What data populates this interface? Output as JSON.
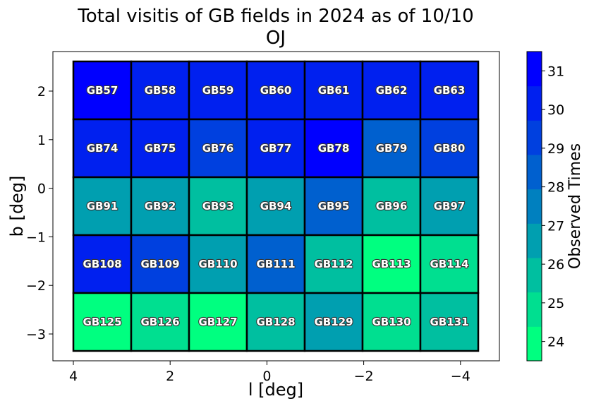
{
  "chart_data": {
    "type": "heatmap",
    "title_line1": "Total visitis of GB fields in 2024 as of 10/10",
    "title_line2": "OJ",
    "xlabel": "l [deg]",
    "ylabel": "b [deg]",
    "colorbar_label": "Observed Times",
    "x_ticks": [
      "4",
      "2",
      "0",
      "−2",
      "−4"
    ],
    "y_ticks": [
      "2",
      "1",
      "0",
      "−1",
      "−2",
      "−3"
    ],
    "colorbar_ticks": [
      "24",
      "25",
      "26",
      "27",
      "28",
      "29",
      "30",
      "31"
    ],
    "color_range": [
      23.5,
      31.5
    ],
    "colormap": "winter_r",
    "colors": [
      "#00ff80",
      "#00df90",
      "#00bfa0",
      "#009fb0",
      "#0080bf",
      "#0060cf",
      "#0040df",
      "#0020ef",
      "#0000ff"
    ],
    "grid": false,
    "rows": [
      [
        {
          "label": "GB57",
          "value": 31
        },
        {
          "label": "GB58",
          "value": 30
        },
        {
          "label": "GB59",
          "value": 30
        },
        {
          "label": "GB60",
          "value": 30
        },
        {
          "label": "GB61",
          "value": 30
        },
        {
          "label": "GB62",
          "value": 30
        },
        {
          "label": "GB63",
          "value": 30
        }
      ],
      [
        {
          "label": "GB74",
          "value": 30
        },
        {
          "label": "GB75",
          "value": 30
        },
        {
          "label": "GB76",
          "value": 29
        },
        {
          "label": "GB77",
          "value": 30
        },
        {
          "label": "GB78",
          "value": 31
        },
        {
          "label": "GB79",
          "value": 28
        },
        {
          "label": "GB80",
          "value": 29
        }
      ],
      [
        {
          "label": "GB91",
          "value": 27
        },
        {
          "label": "GB92",
          "value": 27
        },
        {
          "label": "GB93",
          "value": 26
        },
        {
          "label": "GB94",
          "value": 27
        },
        {
          "label": "GB95",
          "value": 28
        },
        {
          "label": "GB96",
          "value": 26
        },
        {
          "label": "GB97",
          "value": 27
        }
      ],
      [
        {
          "label": "GB108",
          "value": 30
        },
        {
          "label": "GB109",
          "value": 29
        },
        {
          "label": "GB110",
          "value": 27
        },
        {
          "label": "GB111",
          "value": 28
        },
        {
          "label": "GB112",
          "value": 26
        },
        {
          "label": "GB113",
          "value": 24
        },
        {
          "label": "GB114",
          "value": 25
        }
      ],
      [
        {
          "label": "GB125",
          "value": 24
        },
        {
          "label": "GB126",
          "value": 25
        },
        {
          "label": "GB127",
          "value": 24
        },
        {
          "label": "GB128",
          "value": 26
        },
        {
          "label": "GB129",
          "value": 27
        },
        {
          "label": "GB130",
          "value": 25
        },
        {
          "label": "GB131",
          "value": 26
        }
      ]
    ]
  }
}
